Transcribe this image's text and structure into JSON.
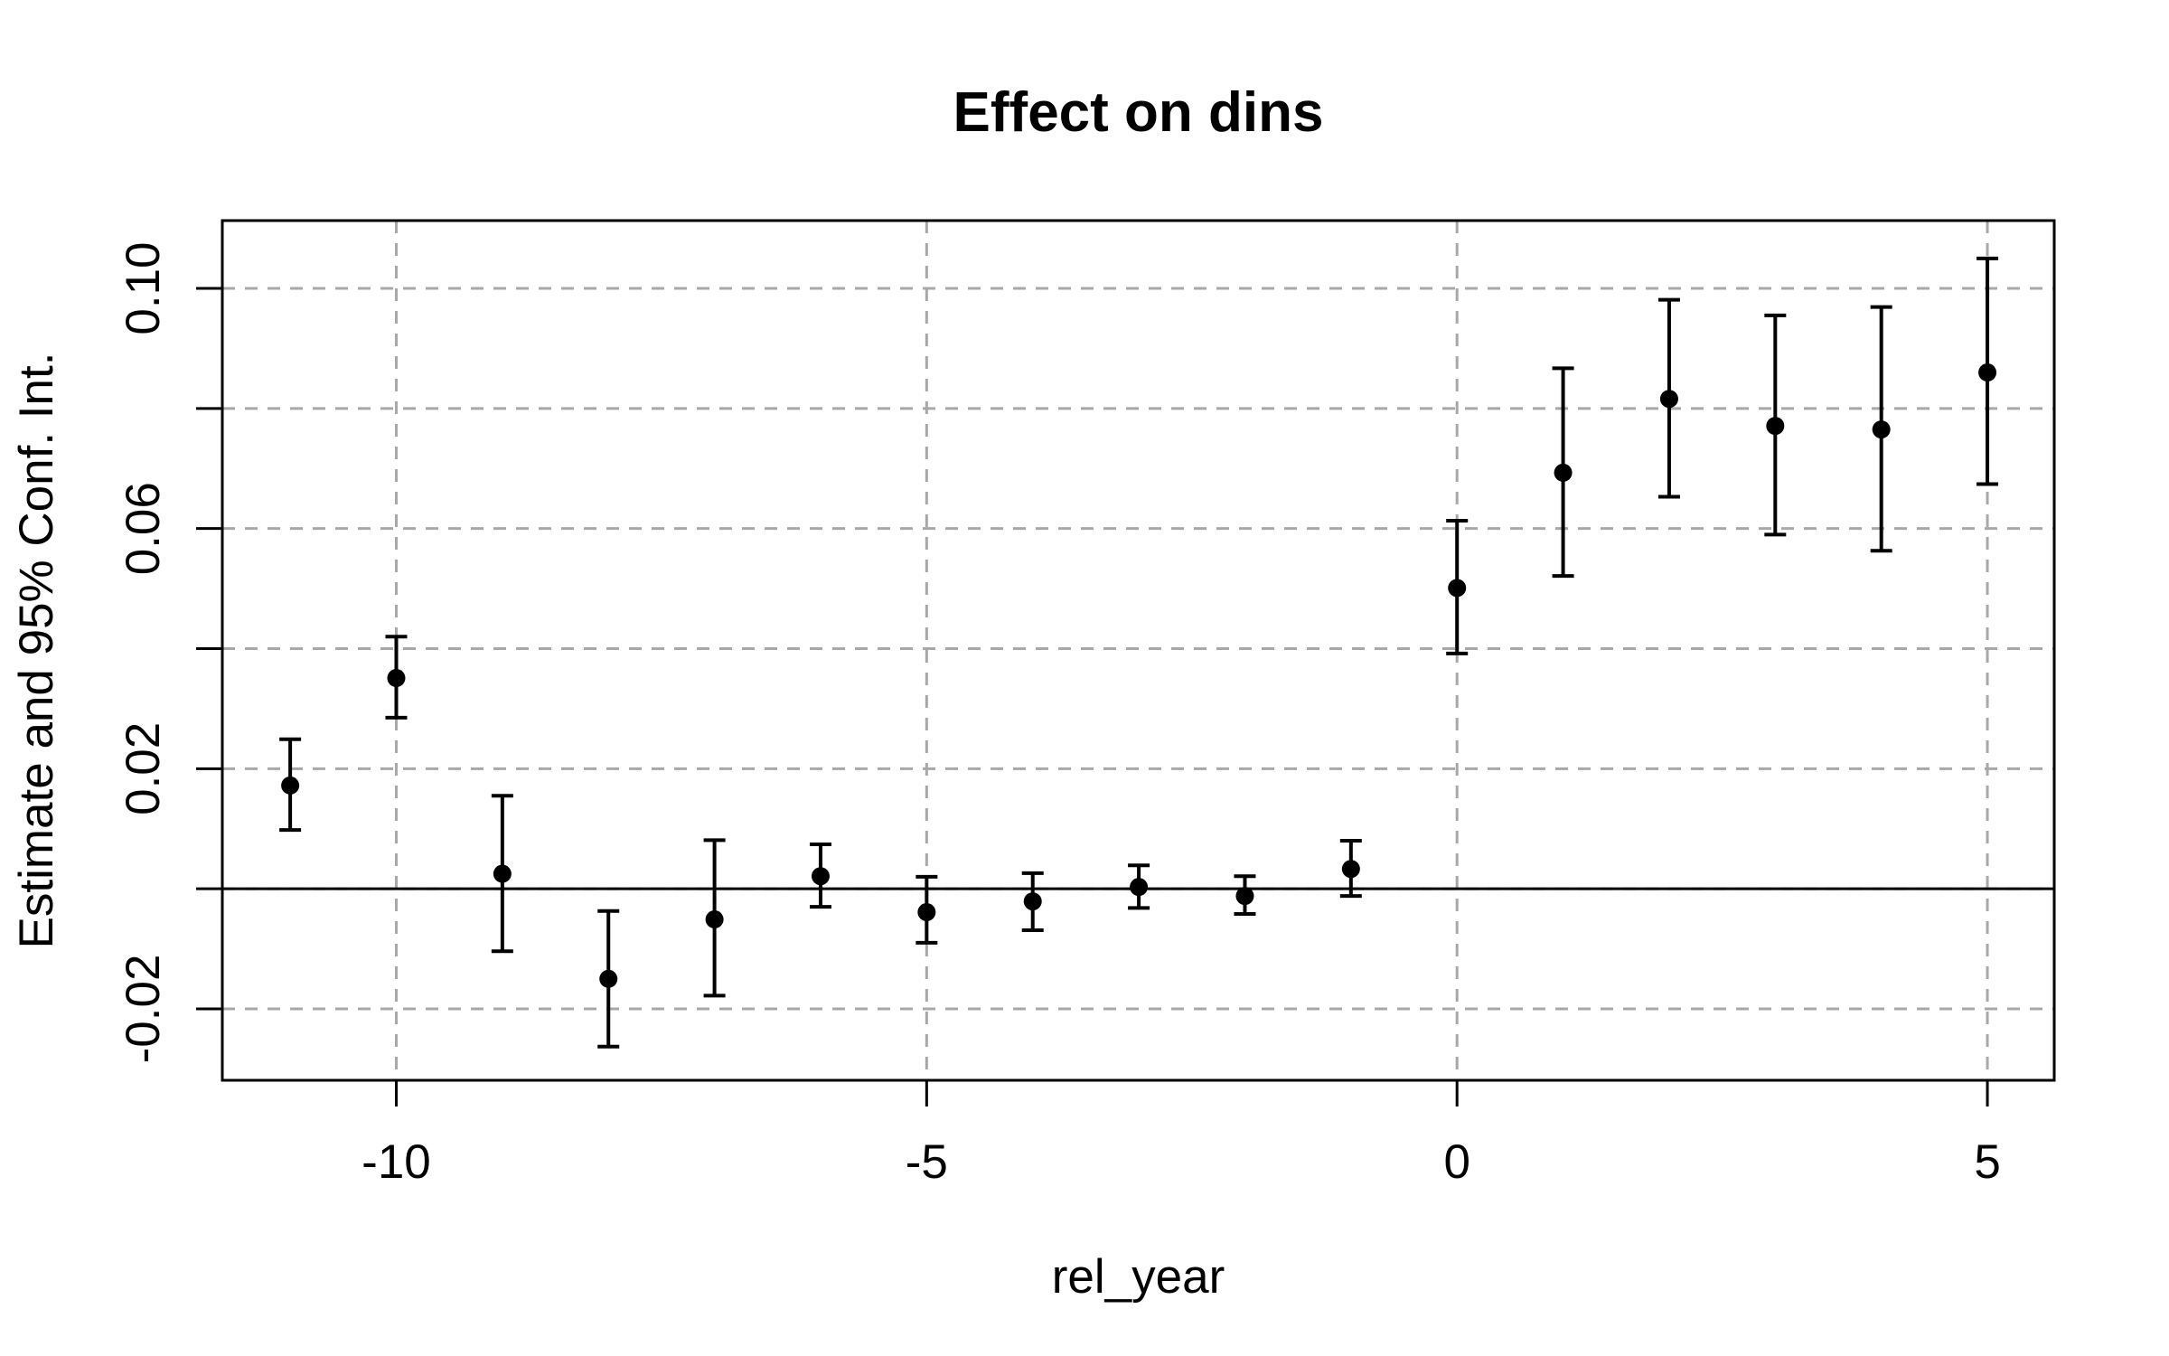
{
  "figure": {
    "background": "#ffffff",
    "foreground": "#000000"
  },
  "chart_data": {
    "type": "scatter",
    "subtype": "errorbar-event-study",
    "title": "Effect on dins",
    "xlabel": "rel_year",
    "ylabel": "Estimate and 95% Conf. Int.",
    "x": [
      -11,
      -10,
      -9,
      -8,
      -7,
      -6,
      -5,
      -4,
      -3,
      -2,
      -1,
      0,
      1,
      2,
      3,
      4,
      5
    ],
    "series": [
      {
        "name": "estimate",
        "values": [
          0.0172,
          0.0351,
          0.0025,
          -0.015,
          -0.0051,
          0.0021,
          -0.0039,
          -0.0021,
          0.0003,
          -0.0012,
          0.0033,
          0.0501,
          0.0693,
          0.0816,
          0.0771,
          0.0765,
          0.086
        ]
      },
      {
        "name": "ci_lower_95",
        "values": [
          0.0098,
          0.0285,
          -0.0104,
          -0.0263,
          -0.0178,
          -0.003,
          -0.009,
          -0.0069,
          -0.0032,
          -0.0042,
          -0.0012,
          0.0392,
          0.0521,
          0.0653,
          0.059,
          0.0563,
          0.0674
        ]
      },
      {
        "name": "ci_upper_95",
        "values": [
          0.0249,
          0.042,
          0.0155,
          -0.0037,
          0.0081,
          0.0074,
          0.002,
          0.0026,
          0.0039,
          0.0021,
          0.008,
          0.0613,
          0.0867,
          0.0981,
          0.0955,
          0.0969,
          0.105
        ]
      }
    ],
    "x_ticks": {
      "values": [
        -10,
        -5,
        0,
        5
      ],
      "labels": [
        "-10",
        "-5",
        "0",
        "5"
      ]
    },
    "y_ticks": {
      "values_all": [
        -0.02,
        0.0,
        0.02,
        0.04,
        0.06,
        0.08,
        0.1
      ],
      "labeled_values": [
        -0.02,
        0.02,
        0.06,
        0.1
      ],
      "labels": [
        "-0.02",
        "0.02",
        "0.06",
        "0.10"
      ]
    },
    "xlim": [
      -11.64,
      5.63
    ],
    "ylim": [
      -0.0319,
      0.1113
    ],
    "grid": {
      "show": true,
      "style": "dashed",
      "color": "#a8a8a8"
    },
    "zero_line": {
      "y": 0,
      "color": "#000000"
    },
    "point_color": "#000000",
    "error_bar_color": "#000000",
    "legend": null
  }
}
